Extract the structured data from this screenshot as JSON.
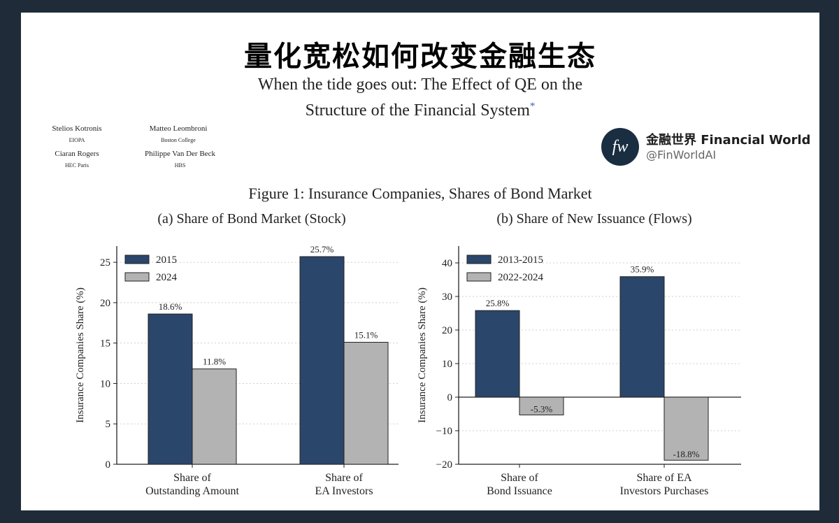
{
  "header": {
    "main_title": "量化宽松如何改变金融生态",
    "paper_title_line1": "When the tide goes out: The Effect of QE on the",
    "paper_title_line2": "Structure of the Financial System",
    "asterisk": "*"
  },
  "authors": [
    {
      "name": "Stelios Kotronis",
      "affiliation": "EIOPA"
    },
    {
      "name": "Matteo Leombroni",
      "affiliation": "Boston College"
    },
    {
      "name": "Ciaran Rogers",
      "affiliation": "HEC Paris"
    },
    {
      "name": "Philippe Van Der Beck",
      "affiliation": "HBS"
    }
  ],
  "brand": {
    "logo_text": "fw",
    "name": "金融世界 Financial World",
    "handle": "@FinWorldAI"
  },
  "figure_title": "Figure 1: Insurance Companies, Shares of Bond Market",
  "colors": {
    "dark": "#2b466b",
    "light": "#b3b3b3"
  },
  "chart_data": [
    {
      "type": "bar",
      "title": "(a) Share of Bond Market (Stock)",
      "ylabel": "Insurance Companies Share (%)",
      "ylim": [
        0,
        27
      ],
      "yticks": [
        0,
        5,
        10,
        15,
        20,
        25
      ],
      "grid": true,
      "legend": "top-left",
      "categories": [
        [
          "Share of",
          "Outstanding Amount"
        ],
        [
          "Share of",
          "EA Investors"
        ]
      ],
      "series": [
        {
          "name": "2015",
          "values": [
            18.6,
            25.7
          ],
          "labels": [
            "18.6%",
            "25.7%"
          ],
          "color": "#2b466b"
        },
        {
          "name": "2024",
          "values": [
            11.8,
            15.1
          ],
          "labels": [
            "11.8%",
            "15.1%"
          ],
          "color": "#b3b3b3"
        }
      ]
    },
    {
      "type": "bar",
      "title": "(b) Share of New Issuance (Flows)",
      "ylabel": "Insurance Companies Share (%)",
      "ylim": [
        -20,
        45
      ],
      "yticks": [
        -20,
        -10,
        0,
        10,
        20,
        30,
        40
      ],
      "ytick_labels": [
        "−20",
        "−10",
        "0",
        "10",
        "20",
        "30",
        "40"
      ],
      "grid": true,
      "legend": "top-left",
      "categories": [
        [
          "Share of",
          "Bond Issuance"
        ],
        [
          "Share of EA",
          "Investors Purchases"
        ]
      ],
      "series": [
        {
          "name": "2013-2015",
          "values": [
            25.8,
            35.9
          ],
          "labels": [
            "25.8%",
            "35.9%"
          ],
          "color": "#2b466b"
        },
        {
          "name": "2022-2024",
          "values": [
            -5.3,
            -18.8
          ],
          "labels": [
            "-5.3%",
            "-18.8%"
          ],
          "color": "#b3b3b3"
        }
      ]
    }
  ]
}
